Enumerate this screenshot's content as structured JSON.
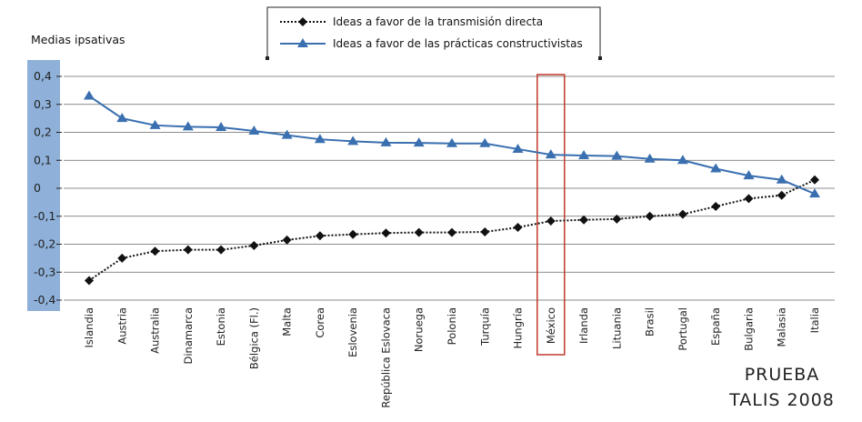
{
  "chart_data": {
    "type": "line",
    "ylabel": "Medias ipsativas",
    "yticks": [
      "0,4",
      "0,3",
      "0,2",
      "0,1",
      "0",
      "-0,1",
      "-0,2",
      "-0,3",
      "-0,4"
    ],
    "ylim": [
      -0.4,
      0.4
    ],
    "grid": "horizontal",
    "legend_position": "top-center",
    "highlight_category": "México",
    "categories": [
      "Islandia",
      "Austria",
      "Australia",
      "Dinamarca",
      "Estonia",
      "Bélgica (Fl.)",
      "Malta",
      "Corea",
      "Eslovenia",
      "República Eslovaca",
      "Noruega",
      "Polonia",
      "Turquía",
      "Hungría",
      "México",
      "Irlanda",
      "Lituania",
      "Brasil",
      "Portugal",
      "España",
      "Bulgaria",
      "Malasia",
      "Italia"
    ],
    "series": [
      {
        "name": "Ideas a favor de la transmisión directa",
        "color": "#111111",
        "marker": "diamond",
        "values": [
          -0.33,
          -0.25,
          -0.225,
          -0.22,
          -0.22,
          -0.205,
          -0.185,
          -0.17,
          -0.165,
          -0.16,
          -0.158,
          -0.158,
          -0.156,
          -0.14,
          -0.117,
          -0.113,
          -0.11,
          -0.1,
          -0.093,
          -0.065,
          -0.037,
          -0.025,
          0.03
        ]
      },
      {
        "name": "Ideas a favor de las prácticas constructivistas",
        "color": "#3a6fb0",
        "marker": "triangle",
        "values": [
          0.33,
          0.25,
          0.225,
          0.22,
          0.218,
          0.205,
          0.19,
          0.175,
          0.168,
          0.163,
          0.162,
          0.16,
          0.16,
          0.14,
          0.12,
          0.117,
          0.115,
          0.105,
          0.1,
          0.07,
          0.045,
          0.03,
          -0.02
        ]
      }
    ]
  },
  "watermark": {
    "line1": "PRUEBA",
    "line2": "TALIS 2008"
  },
  "colors": {
    "y_axis_band": "#8eb0d9",
    "highlight_box": "#c0392b",
    "grid": "#666666"
  }
}
